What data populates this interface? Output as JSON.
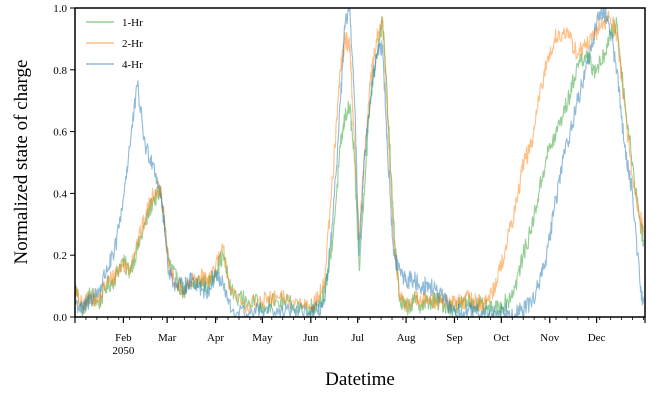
{
  "chart_data": {
    "type": "line",
    "xlabel": "Datetime",
    "ylabel": "Normalized state of charge",
    "ylim": [
      0,
      1
    ],
    "yticks": [
      0.0,
      0.2,
      0.4,
      0.6,
      0.8,
      1.0
    ],
    "ytick_labels": [
      "0.0",
      "0.2",
      "0.4",
      "0.6",
      "0.8",
      "1.0"
    ],
    "xlim": [
      "2050-01-01",
      "2051-01-01"
    ],
    "x_major_ticks": [
      {
        "label": "Feb",
        "sublabel": "2050",
        "day": 31
      },
      {
        "label": "Mar",
        "day": 59
      },
      {
        "label": "Apr",
        "day": 90
      },
      {
        "label": "May",
        "day": 120
      },
      {
        "label": "Jun",
        "day": 151
      },
      {
        "label": "Jul",
        "day": 181
      },
      {
        "label": "Aug",
        "day": 212
      },
      {
        "label": "Sep",
        "day": 243
      },
      {
        "label": "Oct",
        "day": 273
      },
      {
        "label": "Nov",
        "day": 304
      },
      {
        "label": "Dec",
        "day": 334
      }
    ],
    "legend_position": "top-left",
    "grid": false,
    "series": [
      {
        "name": "1-Hr",
        "color": "#2ca02c",
        "x": [
          "2050-01-01",
          "2050-01-06",
          "2050-01-11",
          "2050-01-16",
          "2050-01-21",
          "2050-01-26",
          "2050-01-31",
          "2050-02-05",
          "2050-02-10",
          "2050-02-15",
          "2050-02-20",
          "2050-02-25",
          "2050-03-02",
          "2050-03-07",
          "2050-03-12",
          "2050-03-17",
          "2050-03-22",
          "2050-03-27",
          "2050-04-01",
          "2050-04-06",
          "2050-04-11",
          "2050-04-21",
          "2050-05-01",
          "2050-05-11",
          "2050-05-21",
          "2050-05-31",
          "2050-06-05",
          "2050-06-10",
          "2050-06-15",
          "2050-06-20",
          "2050-06-23",
          "2050-06-26",
          "2050-06-29",
          "2050-07-02",
          "2050-07-05",
          "2050-07-09",
          "2050-07-13",
          "2050-07-17",
          "2050-07-20",
          "2050-07-24",
          "2050-07-28",
          "2050-08-01",
          "2050-08-06",
          "2050-08-11",
          "2050-08-16",
          "2050-08-21",
          "2050-08-26",
          "2050-08-31",
          "2050-09-05",
          "2050-09-10",
          "2050-09-15",
          "2050-09-20",
          "2050-09-25",
          "2050-09-30",
          "2050-10-05",
          "2050-10-10",
          "2050-10-15",
          "2050-10-20",
          "2050-10-25",
          "2050-10-30",
          "2050-11-04",
          "2050-11-09",
          "2050-11-14",
          "2050-11-19",
          "2050-11-24",
          "2050-11-29",
          "2050-12-04",
          "2050-12-09",
          "2050-12-14",
          "2050-12-19",
          "2050-12-24",
          "2050-12-29",
          "2050-12-31"
        ],
        "y": [
          0.1,
          0.02,
          0.08,
          0.04,
          0.1,
          0.12,
          0.18,
          0.15,
          0.22,
          0.3,
          0.38,
          0.4,
          0.18,
          0.12,
          0.08,
          0.1,
          0.12,
          0.1,
          0.15,
          0.2,
          0.08,
          0.05,
          0.04,
          0.05,
          0.04,
          0.03,
          0.04,
          0.08,
          0.25,
          0.55,
          0.65,
          0.68,
          0.5,
          0.15,
          0.4,
          0.7,
          0.85,
          0.96,
          0.7,
          0.3,
          0.05,
          0.03,
          0.05,
          0.04,
          0.05,
          0.05,
          0.04,
          0.03,
          0.04,
          0.05,
          0.04,
          0.03,
          0.02,
          0.03,
          0.05,
          0.1,
          0.2,
          0.28,
          0.4,
          0.52,
          0.58,
          0.65,
          0.72,
          0.82,
          0.85,
          0.8,
          0.82,
          0.9,
          0.95,
          0.7,
          0.5,
          0.3,
          0.25
        ]
      },
      {
        "name": "2-Hr",
        "color": "#ff7f0e",
        "x": [
          "2050-01-01",
          "2050-01-06",
          "2050-01-11",
          "2050-01-16",
          "2050-01-21",
          "2050-01-26",
          "2050-01-31",
          "2050-02-05",
          "2050-02-10",
          "2050-02-15",
          "2050-02-20",
          "2050-02-25",
          "2050-03-02",
          "2050-03-07",
          "2050-03-12",
          "2050-03-17",
          "2050-03-22",
          "2050-03-27",
          "2050-04-01",
          "2050-04-06",
          "2050-04-11",
          "2050-04-21",
          "2050-05-01",
          "2050-05-11",
          "2050-05-21",
          "2050-05-31",
          "2050-06-05",
          "2050-06-10",
          "2050-06-15",
          "2050-06-20",
          "2050-06-23",
          "2050-06-26",
          "2050-06-29",
          "2050-07-02",
          "2050-07-05",
          "2050-07-09",
          "2050-07-13",
          "2050-07-17",
          "2050-07-20",
          "2050-07-24",
          "2050-07-28",
          "2050-08-01",
          "2050-08-06",
          "2050-08-11",
          "2050-08-16",
          "2050-08-21",
          "2050-08-26",
          "2050-08-31",
          "2050-09-05",
          "2050-09-10",
          "2050-09-15",
          "2050-09-20",
          "2050-09-25",
          "2050-09-30",
          "2050-10-05",
          "2050-10-10",
          "2050-10-15",
          "2050-10-20",
          "2050-10-25",
          "2050-10-30",
          "2050-11-04",
          "2050-11-09",
          "2050-11-14",
          "2050-11-19",
          "2050-11-24",
          "2050-11-29",
          "2050-12-04",
          "2050-12-09",
          "2050-12-14",
          "2050-12-19",
          "2050-12-24",
          "2050-12-29",
          "2050-12-31"
        ],
        "y": [
          0.08,
          0.03,
          0.07,
          0.05,
          0.11,
          0.13,
          0.17,
          0.16,
          0.24,
          0.32,
          0.4,
          0.42,
          0.16,
          0.1,
          0.09,
          0.11,
          0.13,
          0.12,
          0.16,
          0.22,
          0.07,
          0.04,
          0.05,
          0.06,
          0.05,
          0.04,
          0.05,
          0.12,
          0.45,
          0.8,
          0.9,
          0.88,
          0.55,
          0.25,
          0.5,
          0.75,
          0.9,
          0.97,
          0.65,
          0.25,
          0.06,
          0.04,
          0.06,
          0.05,
          0.06,
          0.05,
          0.05,
          0.04,
          0.05,
          0.06,
          0.05,
          0.04,
          0.08,
          0.15,
          0.25,
          0.35,
          0.5,
          0.55,
          0.7,
          0.82,
          0.9,
          0.92,
          0.9,
          0.85,
          0.88,
          0.9,
          0.95,
          0.97,
          0.92,
          0.68,
          0.45,
          0.32,
          0.28
        ]
      },
      {
        "name": "4-Hr",
        "color": "#1f77b4",
        "x": [
          "2050-01-01",
          "2050-01-06",
          "2050-01-11",
          "2050-01-16",
          "2050-01-21",
          "2050-01-26",
          "2050-01-31",
          "2050-02-05",
          "2050-02-10",
          "2050-02-15",
          "2050-02-20",
          "2050-02-25",
          "2050-03-02",
          "2050-03-07",
          "2050-03-12",
          "2050-03-17",
          "2050-03-22",
          "2050-03-27",
          "2050-04-01",
          "2050-04-06",
          "2050-04-11",
          "2050-04-21",
          "2050-05-01",
          "2050-05-11",
          "2050-05-21",
          "2050-05-31",
          "2050-06-05",
          "2050-06-10",
          "2050-06-15",
          "2050-06-20",
          "2050-06-23",
          "2050-06-26",
          "2050-06-29",
          "2050-07-02",
          "2050-07-05",
          "2050-07-09",
          "2050-07-13",
          "2050-07-17",
          "2050-07-20",
          "2050-07-24",
          "2050-07-28",
          "2050-08-01",
          "2050-08-06",
          "2050-08-11",
          "2050-08-16",
          "2050-08-21",
          "2050-08-26",
          "2050-08-31",
          "2050-09-05",
          "2050-09-10",
          "2050-09-15",
          "2050-09-20",
          "2050-09-25",
          "2050-09-30",
          "2050-10-05",
          "2050-10-10",
          "2050-10-15",
          "2050-10-20",
          "2050-10-25",
          "2050-10-30",
          "2050-11-04",
          "2050-11-09",
          "2050-11-14",
          "2050-11-19",
          "2050-11-24",
          "2050-11-29",
          "2050-12-04",
          "2050-12-09",
          "2050-12-14",
          "2050-12-19",
          "2050-12-24",
          "2050-12-29",
          "2050-12-31"
        ],
        "y": [
          0.05,
          0.02,
          0.06,
          0.08,
          0.15,
          0.2,
          0.35,
          0.55,
          0.75,
          0.55,
          0.5,
          0.4,
          0.15,
          0.1,
          0.1,
          0.12,
          0.1,
          0.08,
          0.14,
          0.1,
          0.02,
          0.01,
          0.02,
          0.01,
          0.02,
          0.01,
          0.02,
          0.05,
          0.3,
          0.7,
          0.95,
          1.0,
          0.7,
          0.2,
          0.5,
          0.7,
          0.85,
          0.88,
          0.55,
          0.2,
          0.15,
          0.12,
          0.12,
          0.1,
          0.1,
          0.08,
          0.05,
          0.02,
          0.01,
          0.02,
          0.01,
          0.01,
          0.01,
          0.02,
          0.02,
          0.01,
          0.02,
          0.05,
          0.1,
          0.2,
          0.35,
          0.5,
          0.6,
          0.7,
          0.8,
          0.9,
          1.0,
          0.95,
          0.8,
          0.55,
          0.4,
          0.1,
          0.05
        ]
      }
    ]
  }
}
